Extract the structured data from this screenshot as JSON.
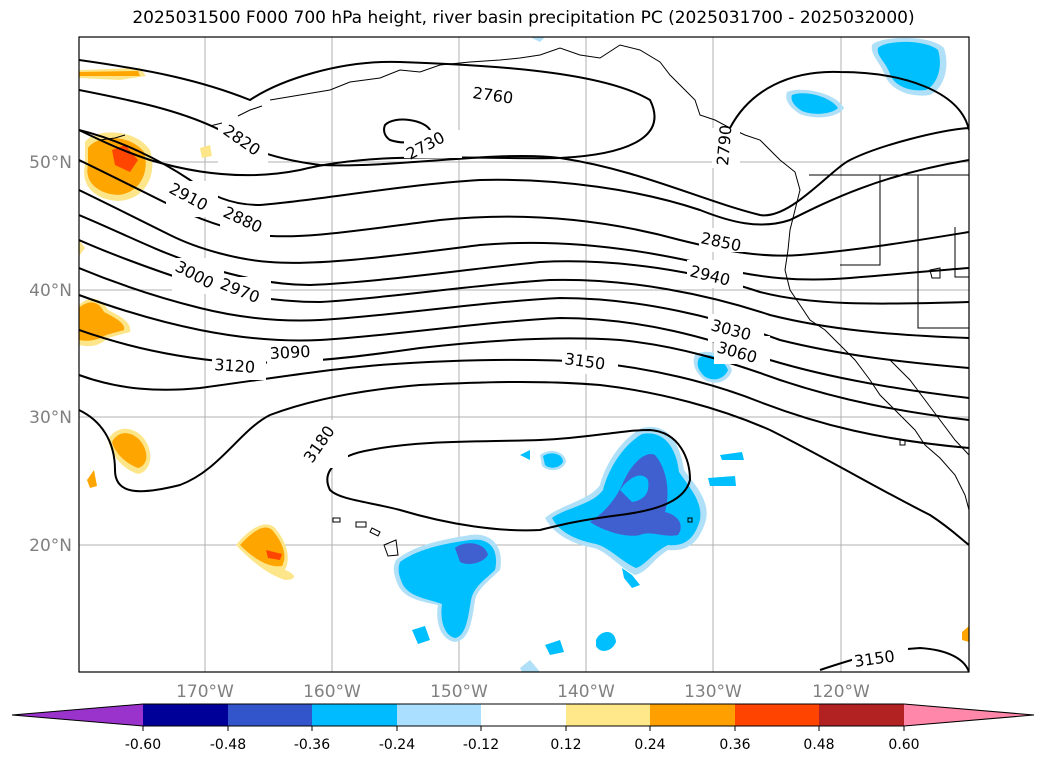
{
  "title": "2025031500 F000 700 hPa height, river basin precipitation PC (2025031700 - 2025032000)",
  "map": {
    "lat_labels": [
      "50°N",
      "40°N",
      "30°N",
      "20°N"
    ],
    "lon_labels": [
      "170°W",
      "160°W",
      "150°W",
      "140°W",
      "130°W",
      "120°W"
    ],
    "contour_labels": [
      "2760",
      "2730",
      "2820",
      "2790",
      "2910",
      "2880",
      "2850",
      "3000",
      "2970",
      "2940",
      "3030",
      "3060",
      "3090",
      "3120",
      "3150",
      "3180",
      "3150"
    ],
    "colors": {
      "pos_0.12": "#fde68a",
      "pos_0.24": "#ffa500",
      "pos_0.36": "#ff4500",
      "neg_0.12": "#b0e0f8",
      "neg_0.24": "#00bfff",
      "neg_0.36": "#4060d0"
    }
  },
  "colorbar": {
    "ticks": [
      "-0.60",
      "-0.48",
      "-0.36",
      "-0.24",
      "-0.12",
      "0.12",
      "0.24",
      "0.36",
      "0.48",
      "0.60"
    ],
    "colors": [
      "#9933cc",
      "#000099",
      "#3355cc",
      "#00bbff",
      "#aadfff",
      "#ffffff",
      "#ffe88a",
      "#ffa000",
      "#ff4400",
      "#b22222",
      "#ff88aa"
    ]
  }
}
